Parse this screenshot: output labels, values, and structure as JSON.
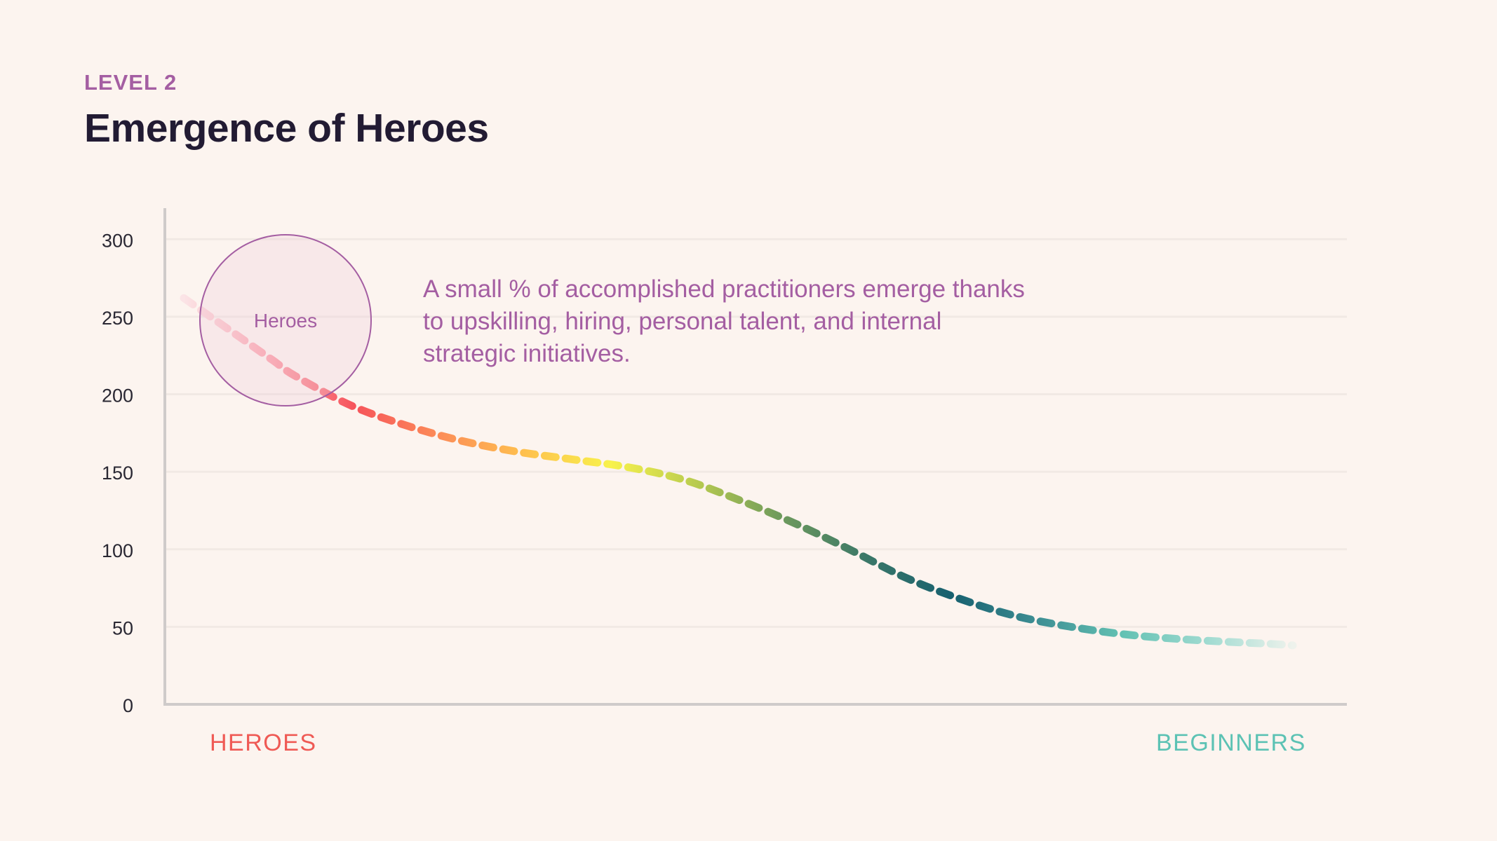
{
  "header": {
    "eyebrow": "LEVEL 2",
    "title": "Emergence of Heroes"
  },
  "annotation": {
    "text": "A small % of  accomplished practitioners emerge thanks to upskilling, hiring, personal talent, and internal strategic initiatives.",
    "circle_label": "Heroes"
  },
  "chart_data": {
    "type": "line",
    "title": "Emergence of Heroes",
    "xlabel": "",
    "ylabel": "",
    "ylim": [
      0,
      320
    ],
    "yticks": [
      0,
      50,
      100,
      150,
      200,
      250,
      300
    ],
    "x_end_labels": {
      "left": "HEROES",
      "right": "BEGINNERS"
    },
    "grid": true,
    "line_style": "dashed-gradient",
    "x": [
      0,
      2,
      5,
      8,
      10,
      15,
      20,
      25,
      30,
      35,
      40,
      45,
      50,
      55,
      60,
      65,
      70,
      75,
      80,
      85,
      90,
      95,
      98,
      100
    ],
    "series": [
      {
        "values": [
          262,
          252,
          237,
          222,
          212,
          193,
          180,
          170,
          163,
          158,
          153,
          145,
          132,
          117,
          100,
          82,
          68,
          57,
          50,
          45,
          42,
          40,
          39,
          38
        ]
      }
    ],
    "gradient_colors": [
      "#fbe4e6",
      "#fca1ab",
      "#f6545b",
      "#fc8d58",
      "#fec14e",
      "#f8f24c",
      "#b8cb4f",
      "#6e9a5c",
      "#3b7868",
      "#17606f",
      "#3d8e93",
      "#63c1b3",
      "#a0dbd1",
      "#eef2ec"
    ]
  },
  "colors": {
    "background": "#fcf4ef",
    "accent": "#a45ea2",
    "title": "#221b33",
    "heroes": "#ef5a55",
    "beginners": "#5cc2b4",
    "axis": "#cfcbca",
    "grid": "#f1e9e4"
  }
}
